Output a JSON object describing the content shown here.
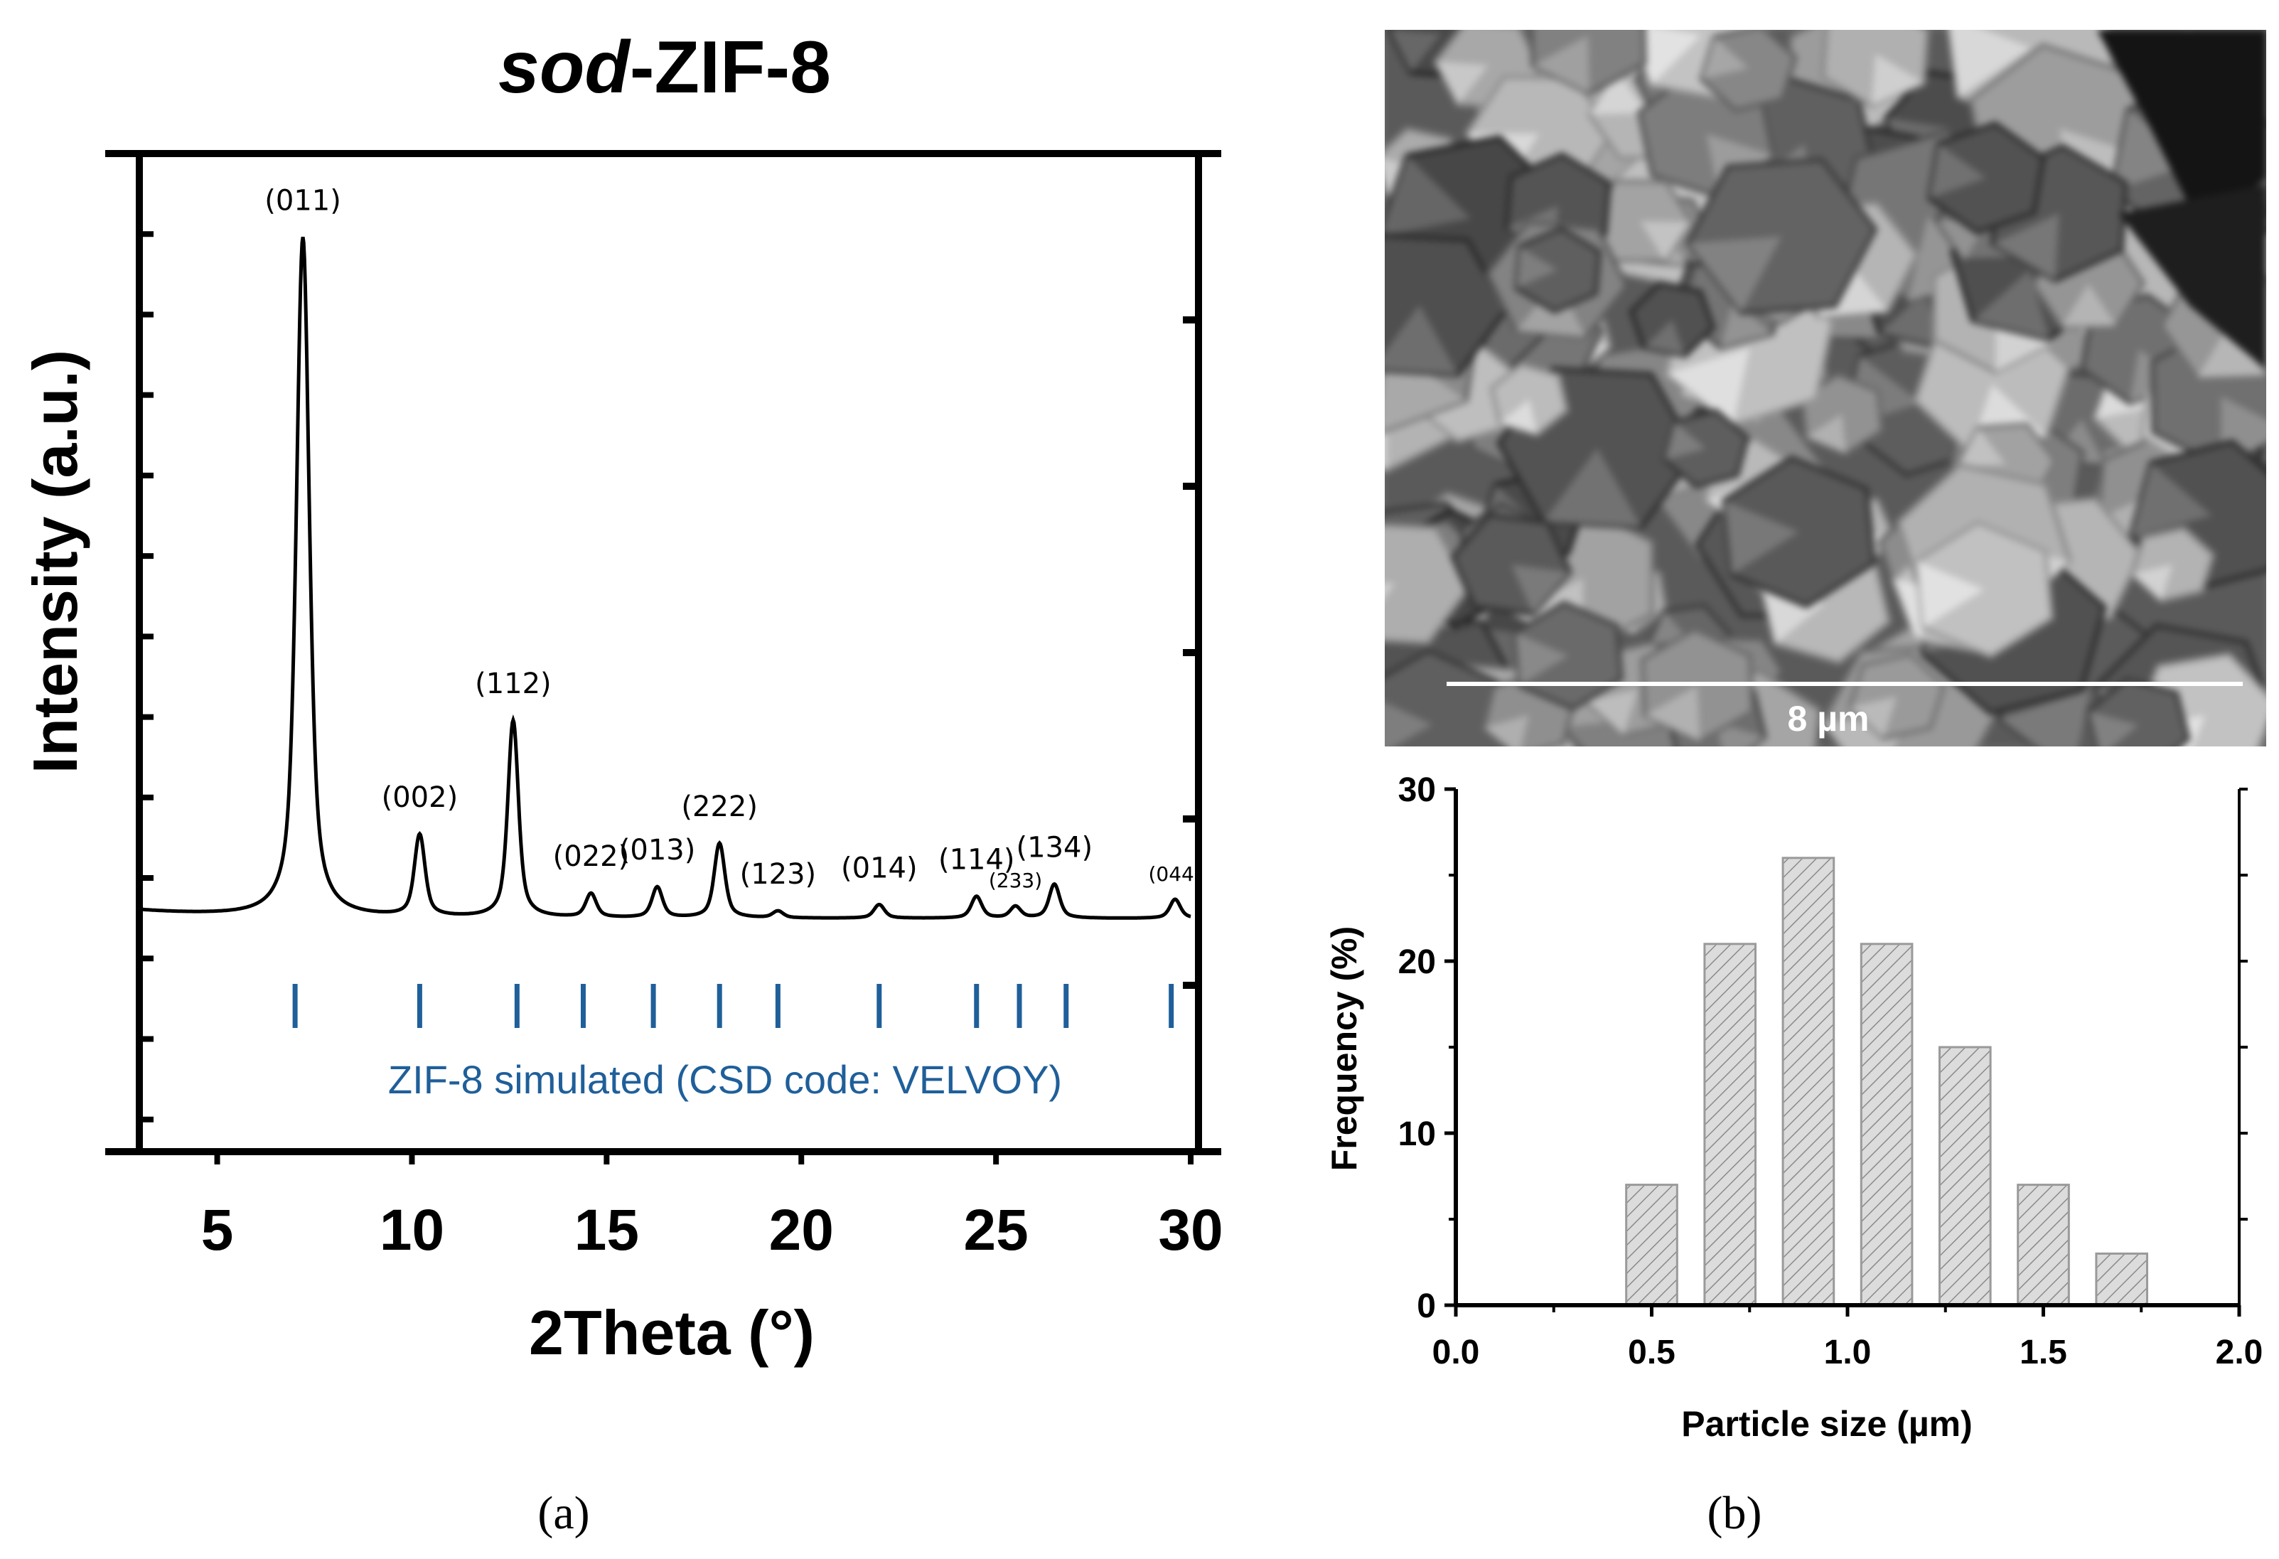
{
  "panel_a": {
    "title_italic": "sod",
    "title_rest": "-ZIF-8",
    "reference_caption": "ZIF-8 simulated (CSD code: VELVOY)",
    "label": "(a)"
  },
  "panel_b": {
    "scale_bar_label": "8 µm",
    "label": "(b)"
  },
  "colors": {
    "trace": "#000000",
    "reference": "#1f5f9a",
    "bar_fill": "#dcdcdc",
    "bar_hatch": "#8a8a8a"
  },
  "chart_data": [
    {
      "type": "line",
      "title": "sod-ZIF-8",
      "xlabel": "2Theta (°)",
      "ylabel": "Intensity (a.u.)",
      "xlim": [
        3,
        30.2
      ],
      "xticks": [
        5,
        10,
        15,
        20,
        25,
        30
      ],
      "y_ticks_labeled": false,
      "grid": false,
      "baseline_intensity": 0.03,
      "peaks": [
        {
          "x": 7.2,
          "intensity": 1.0,
          "label": "(011)"
        },
        {
          "x": 10.2,
          "intensity": 0.12,
          "label": "(002)"
        },
        {
          "x": 12.6,
          "intensity": 0.29,
          "label": "(112)"
        },
        {
          "x": 14.6,
          "intensity": 0.035,
          "label": "(022)"
        },
        {
          "x": 16.3,
          "intensity": 0.045,
          "label": "(013)"
        },
        {
          "x": 17.9,
          "intensity": 0.11,
          "label": "(222)"
        },
        {
          "x": 19.4,
          "intensity": 0.01,
          "label": "(123)"
        },
        {
          "x": 22.0,
          "intensity": 0.02,
          "label": "(014)"
        },
        {
          "x": 24.5,
          "intensity": 0.032,
          "label": "(114)"
        },
        {
          "x": 25.5,
          "intensity": 0.017,
          "label": "(233)"
        },
        {
          "x": 26.5,
          "intensity": 0.05,
          "label": "(134)"
        },
        {
          "x": 29.6,
          "intensity": 0.028,
          "label": "(044)"
        }
      ],
      "reference_positions": [
        7.0,
        10.2,
        12.7,
        14.4,
        16.2,
        17.9,
        19.4,
        22.0,
        24.5,
        25.6,
        26.8,
        29.5
      ],
      "reference_name": "ZIF-8 simulated (CSD code: VELVOY)"
    },
    {
      "type": "bar",
      "xlabel": "Particle size (µm)",
      "ylabel": "Frequency (%)",
      "xlim": [
        0.0,
        2.0
      ],
      "ylim": [
        0,
        30
      ],
      "xticks": [
        "0.0",
        "0.5",
        "1.0",
        "1.5",
        "2.0"
      ],
      "yticks": [
        "0",
        "10",
        "20",
        "30"
      ],
      "bar_width": 0.13,
      "x": [
        0.5,
        0.7,
        0.9,
        1.1,
        1.3,
        1.5,
        1.7
      ],
      "values": [
        7,
        21,
        26,
        21,
        15,
        7,
        3
      ],
      "grid": false,
      "hatch": "diagonal"
    }
  ]
}
